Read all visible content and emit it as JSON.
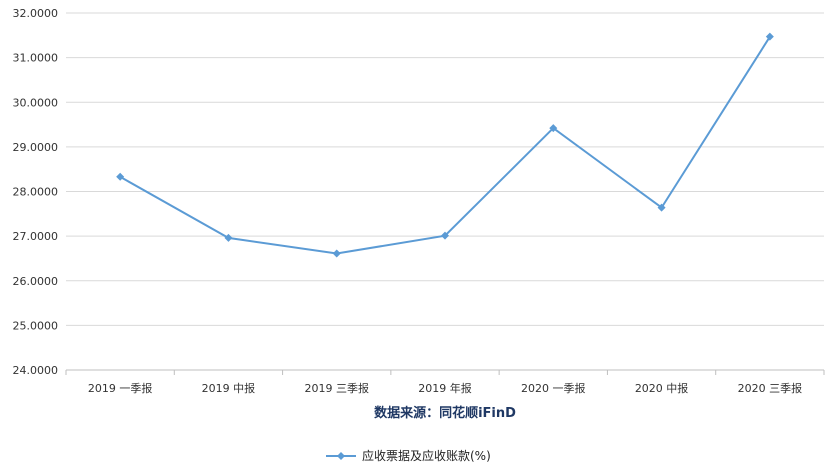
{
  "chart_data": {
    "type": "line",
    "categories": [
      "2019 一季报",
      "2019 中报",
      "2019 三季报",
      "2019 年报",
      "2020 一季报",
      "2020 中报",
      "2020 三季报"
    ],
    "series": [
      {
        "name": "应收票据及应收账款(%)",
        "values": [
          28.33,
          26.96,
          26.61,
          27.01,
          29.42,
          27.64,
          31.47
        ],
        "color": "#5b9bd5",
        "marker": "diamond"
      }
    ],
    "xlabel": "数据来源：同花顺iFinD",
    "ylabel": "",
    "ylim": [
      24,
      32
    ],
    "yticks": [
      "24.0000",
      "25.0000",
      "26.0000",
      "27.0000",
      "28.0000",
      "29.0000",
      "30.0000",
      "31.0000",
      "32.0000"
    ],
    "grid": true,
    "legend_position": "bottom"
  }
}
